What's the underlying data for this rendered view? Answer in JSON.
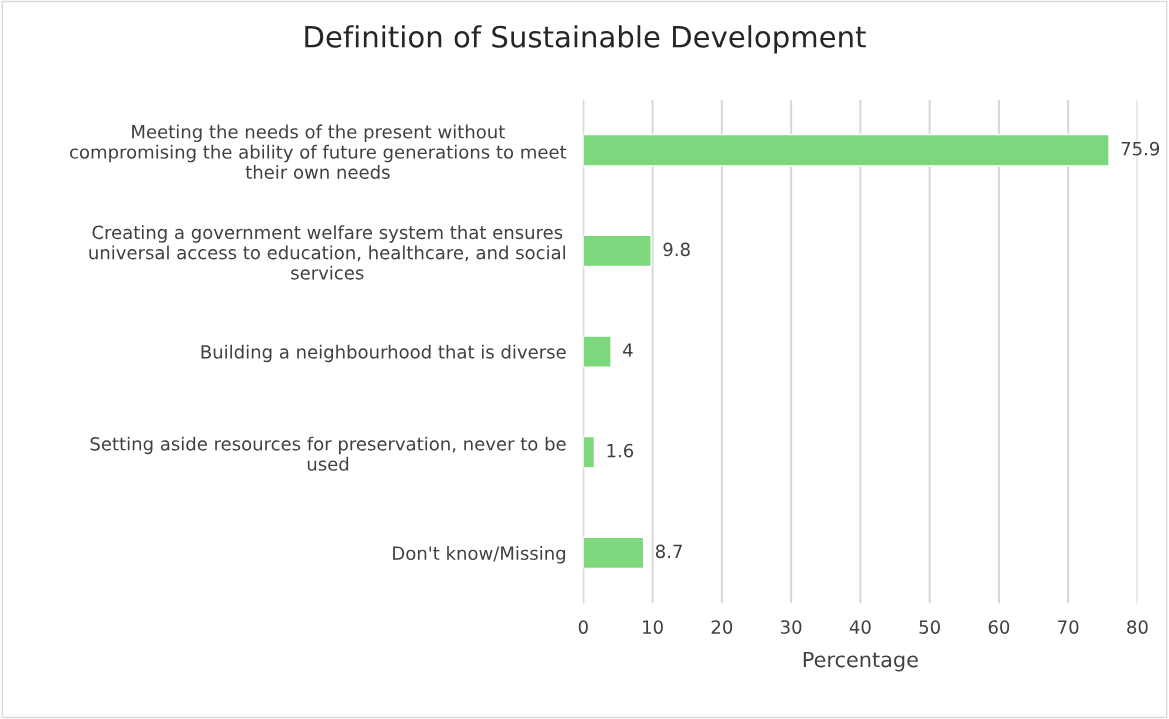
{
  "chart_data": {
    "type": "bar",
    "orientation": "horizontal",
    "title": "Definition of Sustainable Development",
    "xlabel": "Percentage",
    "categories": [
      "Meeting the needs of the present without\ncompromising the ability of future generations to meet\ntheir own needs",
      "Creating a government welfare system that ensures\nuniversal access to education, healthcare, and social\nservices",
      "Building a neighbourhood that is diverse",
      "Setting aside resources for preservation, never to be\nused",
      "Don't know/Missing"
    ],
    "values": [
      75.9,
      9.8,
      4,
      1.6,
      8.7
    ],
    "color": "#7dd87d",
    "xlim": [
      0,
      80
    ],
    "xticks": [
      0,
      10,
      20,
      30,
      40,
      50,
      60,
      70,
      80
    ],
    "grid": "x",
    "data_labels": true
  }
}
